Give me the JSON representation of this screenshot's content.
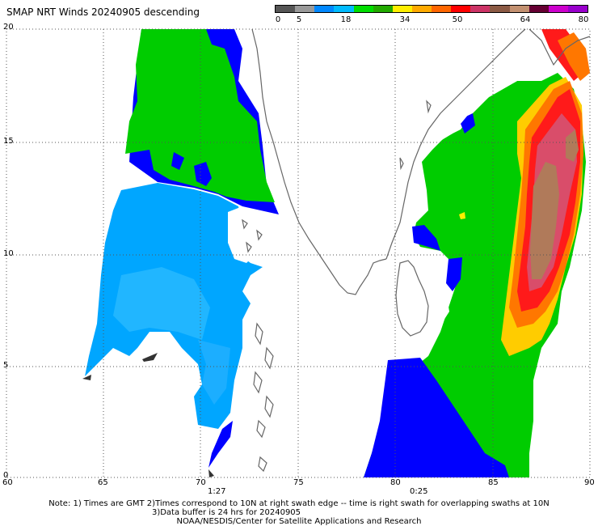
{
  "title": "SMAP NRT Winds  20240905 descending",
  "colorbar": {
    "labels": [
      "0",
      "5",
      "18",
      "34",
      "50",
      "64",
      "80"
    ],
    "colors": [
      "#555555",
      "#999999",
      "#0088ff",
      "#00bbff",
      "#00dd00",
      "#22aa00",
      "#ffee00",
      "#ffaa00",
      "#ff6600",
      "#ff0000",
      "#cc3366",
      "#8b5a44",
      "#c29070",
      "#660033",
      "#cc00cc",
      "#9900cc"
    ]
  },
  "axes": {
    "x_ticks": [
      "60",
      "65",
      "70",
      "75",
      "80",
      "85",
      "90"
    ],
    "y_ticks": [
      "20",
      "15",
      "10",
      "5",
      "0"
    ]
  },
  "swath_times": [
    "1:27",
    "0:25"
  ],
  "notes": {
    "line1": "Note: 1) Times are GMT 2)Times correspond to 10N at right swath edge -- time is right swath for overlapping swaths at 10N",
    "line2": "3)Data buffer is 24 hrs for 20240905",
    "line3": "NOAA/NESDIS/Center for Satellite Applications and Research"
  },
  "colors": {
    "calm_blue": "#0000ff",
    "light_blue": "#00aaff",
    "green": "#00cc00",
    "yellow": "#ffcc00",
    "orange": "#ff6600",
    "red": "#ff0000",
    "brown": "#b07a5a",
    "coast": "#666666",
    "grid": "#666666"
  }
}
